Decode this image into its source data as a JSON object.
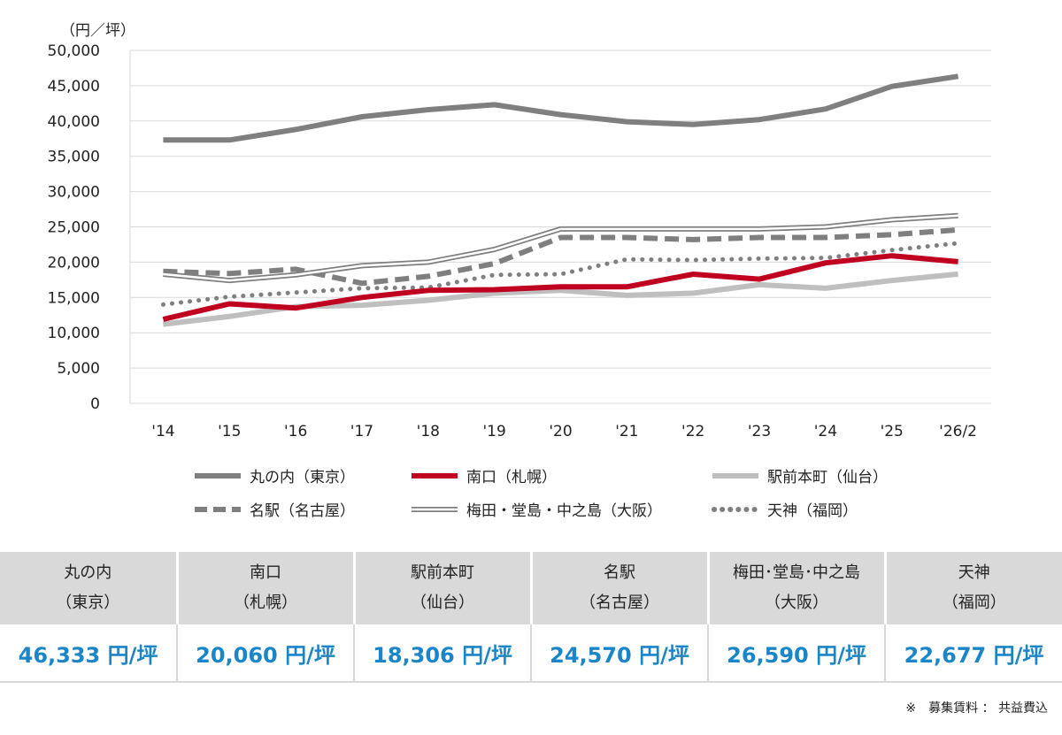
{
  "chart_data": {
    "type": "line",
    "unit_label": "（円／坪）",
    "ylim": [
      0,
      50000
    ],
    "yticks": [
      "0",
      "5,000",
      "10,000",
      "15,000",
      "20,000",
      "25,000",
      "30,000",
      "35,000",
      "40,000",
      "45,000",
      "50,000"
    ],
    "ytick_values": [
      0,
      5000,
      10000,
      15000,
      20000,
      25000,
      30000,
      35000,
      40000,
      45000,
      50000
    ],
    "categories": [
      "'14",
      "'15",
      "'16",
      "'17",
      "'18",
      "'19",
      "'20",
      "'21",
      "'22",
      "'23",
      "'24",
      "'25",
      "'26/2"
    ],
    "series": [
      {
        "name": "丸の内(東京)",
        "style": "solid-thick",
        "color": "#7f7f7f",
        "values": [
          37300,
          37300,
          38800,
          40600,
          41600,
          42300,
          40900,
          39900,
          39500,
          40200,
          41700,
          44900,
          46333
        ]
      },
      {
        "name": "南口(札幌)",
        "style": "solid-thick",
        "color": "#c00020",
        "values": [
          11900,
          14100,
          13500,
          15000,
          16000,
          16100,
          16500,
          16500,
          18300,
          17600,
          19900,
          20900,
          20060
        ]
      },
      {
        "name": "駅前本町(仙台)",
        "style": "solid-thick",
        "color": "#bfbfbf",
        "values": [
          11200,
          12300,
          13700,
          13900,
          14600,
          15600,
          16000,
          15300,
          15600,
          16800,
          16300,
          17400,
          18306
        ]
      },
      {
        "name": "名駅(名古屋)",
        "style": "dashed",
        "color": "#7f7f7f",
        "values": [
          18700,
          18400,
          19000,
          17000,
          18000,
          19800,
          23500,
          23500,
          23200,
          23500,
          23500,
          23900,
          24570
        ]
      },
      {
        "name": "梅田・堂島・中之島(大阪)",
        "style": "double",
        "color": "#7f7f7f",
        "values": [
          18300,
          17400,
          18200,
          19500,
          20000,
          21800,
          24700,
          24700,
          24700,
          24700,
          25000,
          26000,
          26590
        ]
      },
      {
        "name": "天神(福岡)",
        "style": "dotted",
        "color": "#7f7f7f",
        "values": [
          14000,
          15100,
          15700,
          16300,
          16400,
          18200,
          18300,
          20400,
          20300,
          20500,
          20600,
          21700,
          22677
        ]
      }
    ]
  },
  "legend": {
    "items": [
      "丸の内（東京）",
      "南口（札幌）",
      "駅前本町（仙台）",
      "名駅（名古屋）",
      "梅田・堂島・中之島（大阪）",
      "天神（福岡）"
    ]
  },
  "table": {
    "headers": [
      {
        "line1": "丸の内",
        "line2": "（東京）"
      },
      {
        "line1": "南口",
        "line2": "（札幌）"
      },
      {
        "line1": "駅前本町",
        "line2": "（仙台）"
      },
      {
        "line1": "名駅",
        "line2": "（名古屋）"
      },
      {
        "line1": "梅田･堂島･中之島",
        "line2": "（大阪）"
      },
      {
        "line1": "天神",
        "line2": "（福岡）"
      }
    ],
    "values": [
      "46,333 円/坪",
      "20,060 円/坪",
      "18,306 円/坪",
      "24,570 円/坪",
      "26,590 円/坪",
      "22,677 円/坪"
    ]
  },
  "footnote": "※　募集賃料 ： 共益費込"
}
